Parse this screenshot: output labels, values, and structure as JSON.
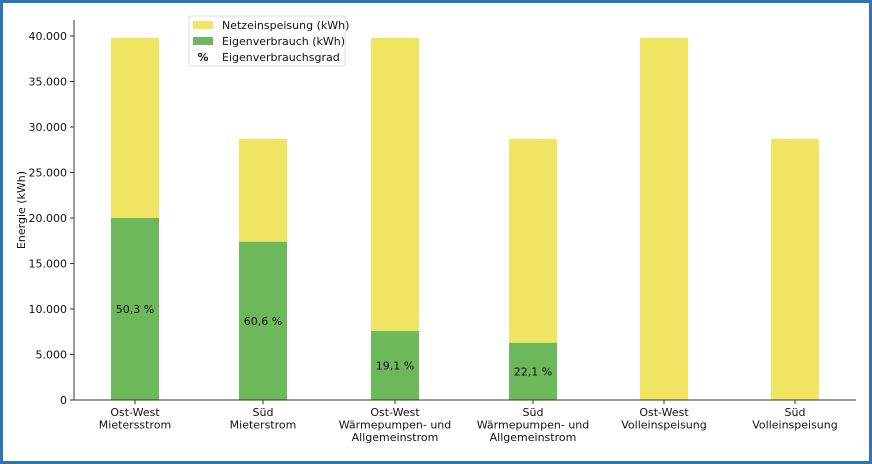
{
  "chart_data": {
    "type": "bar",
    "stacked": true,
    "ylabel": "Energie (kWh)",
    "xlabel": "",
    "ylim": [
      0,
      42000
    ],
    "yticks": [
      0,
      5000,
      10000,
      15000,
      20000,
      25000,
      30000,
      35000,
      40000
    ],
    "ytick_labels": [
      "0",
      "5.000",
      "10.000",
      "15.000",
      "20.000",
      "25.000",
      "30.000",
      "35.000",
      "40.000"
    ],
    "grid": false,
    "legend_position": "top-left",
    "categories": [
      [
        "Ost-West",
        "Mietersstrom"
      ],
      [
        "Süd",
        "Mieterstrom"
      ],
      [
        "Ost-West",
        "Wärmepumpen- und",
        "Allgemeinstrom"
      ],
      [
        "Süd",
        "Wärmepumpen- und",
        "Allgemeinstrom"
      ],
      [
        "Ost-West",
        "Volleinspeisung"
      ],
      [
        "Süd",
        "Volleinspeisung"
      ]
    ],
    "series": [
      {
        "name": "Eigenverbrauch (kWh)",
        "color": "#6db85a",
        "values": [
          20000,
          17400,
          7600,
          6300,
          0,
          0
        ]
      },
      {
        "name": "Netzeinspeisung (kWh)",
        "color": "#f0e562",
        "values": [
          19800,
          11300,
          32200,
          22400,
          39800,
          28700
        ]
      }
    ],
    "data_labels": [
      "50,3 %",
      "60,6 %",
      "19,1 %",
      "22,1 %",
      "",
      ""
    ],
    "legend": [
      {
        "label": "Netzeinspeisung (kWh)",
        "symbol": "patch",
        "color": "#f0e562"
      },
      {
        "label": "Eigenverbrauch (kWh)",
        "symbol": "patch",
        "color": "#6db85a"
      },
      {
        "label": "Eigenverbrauchsgrad",
        "symbol": "%"
      }
    ]
  },
  "frame_color": "#2e75b6"
}
